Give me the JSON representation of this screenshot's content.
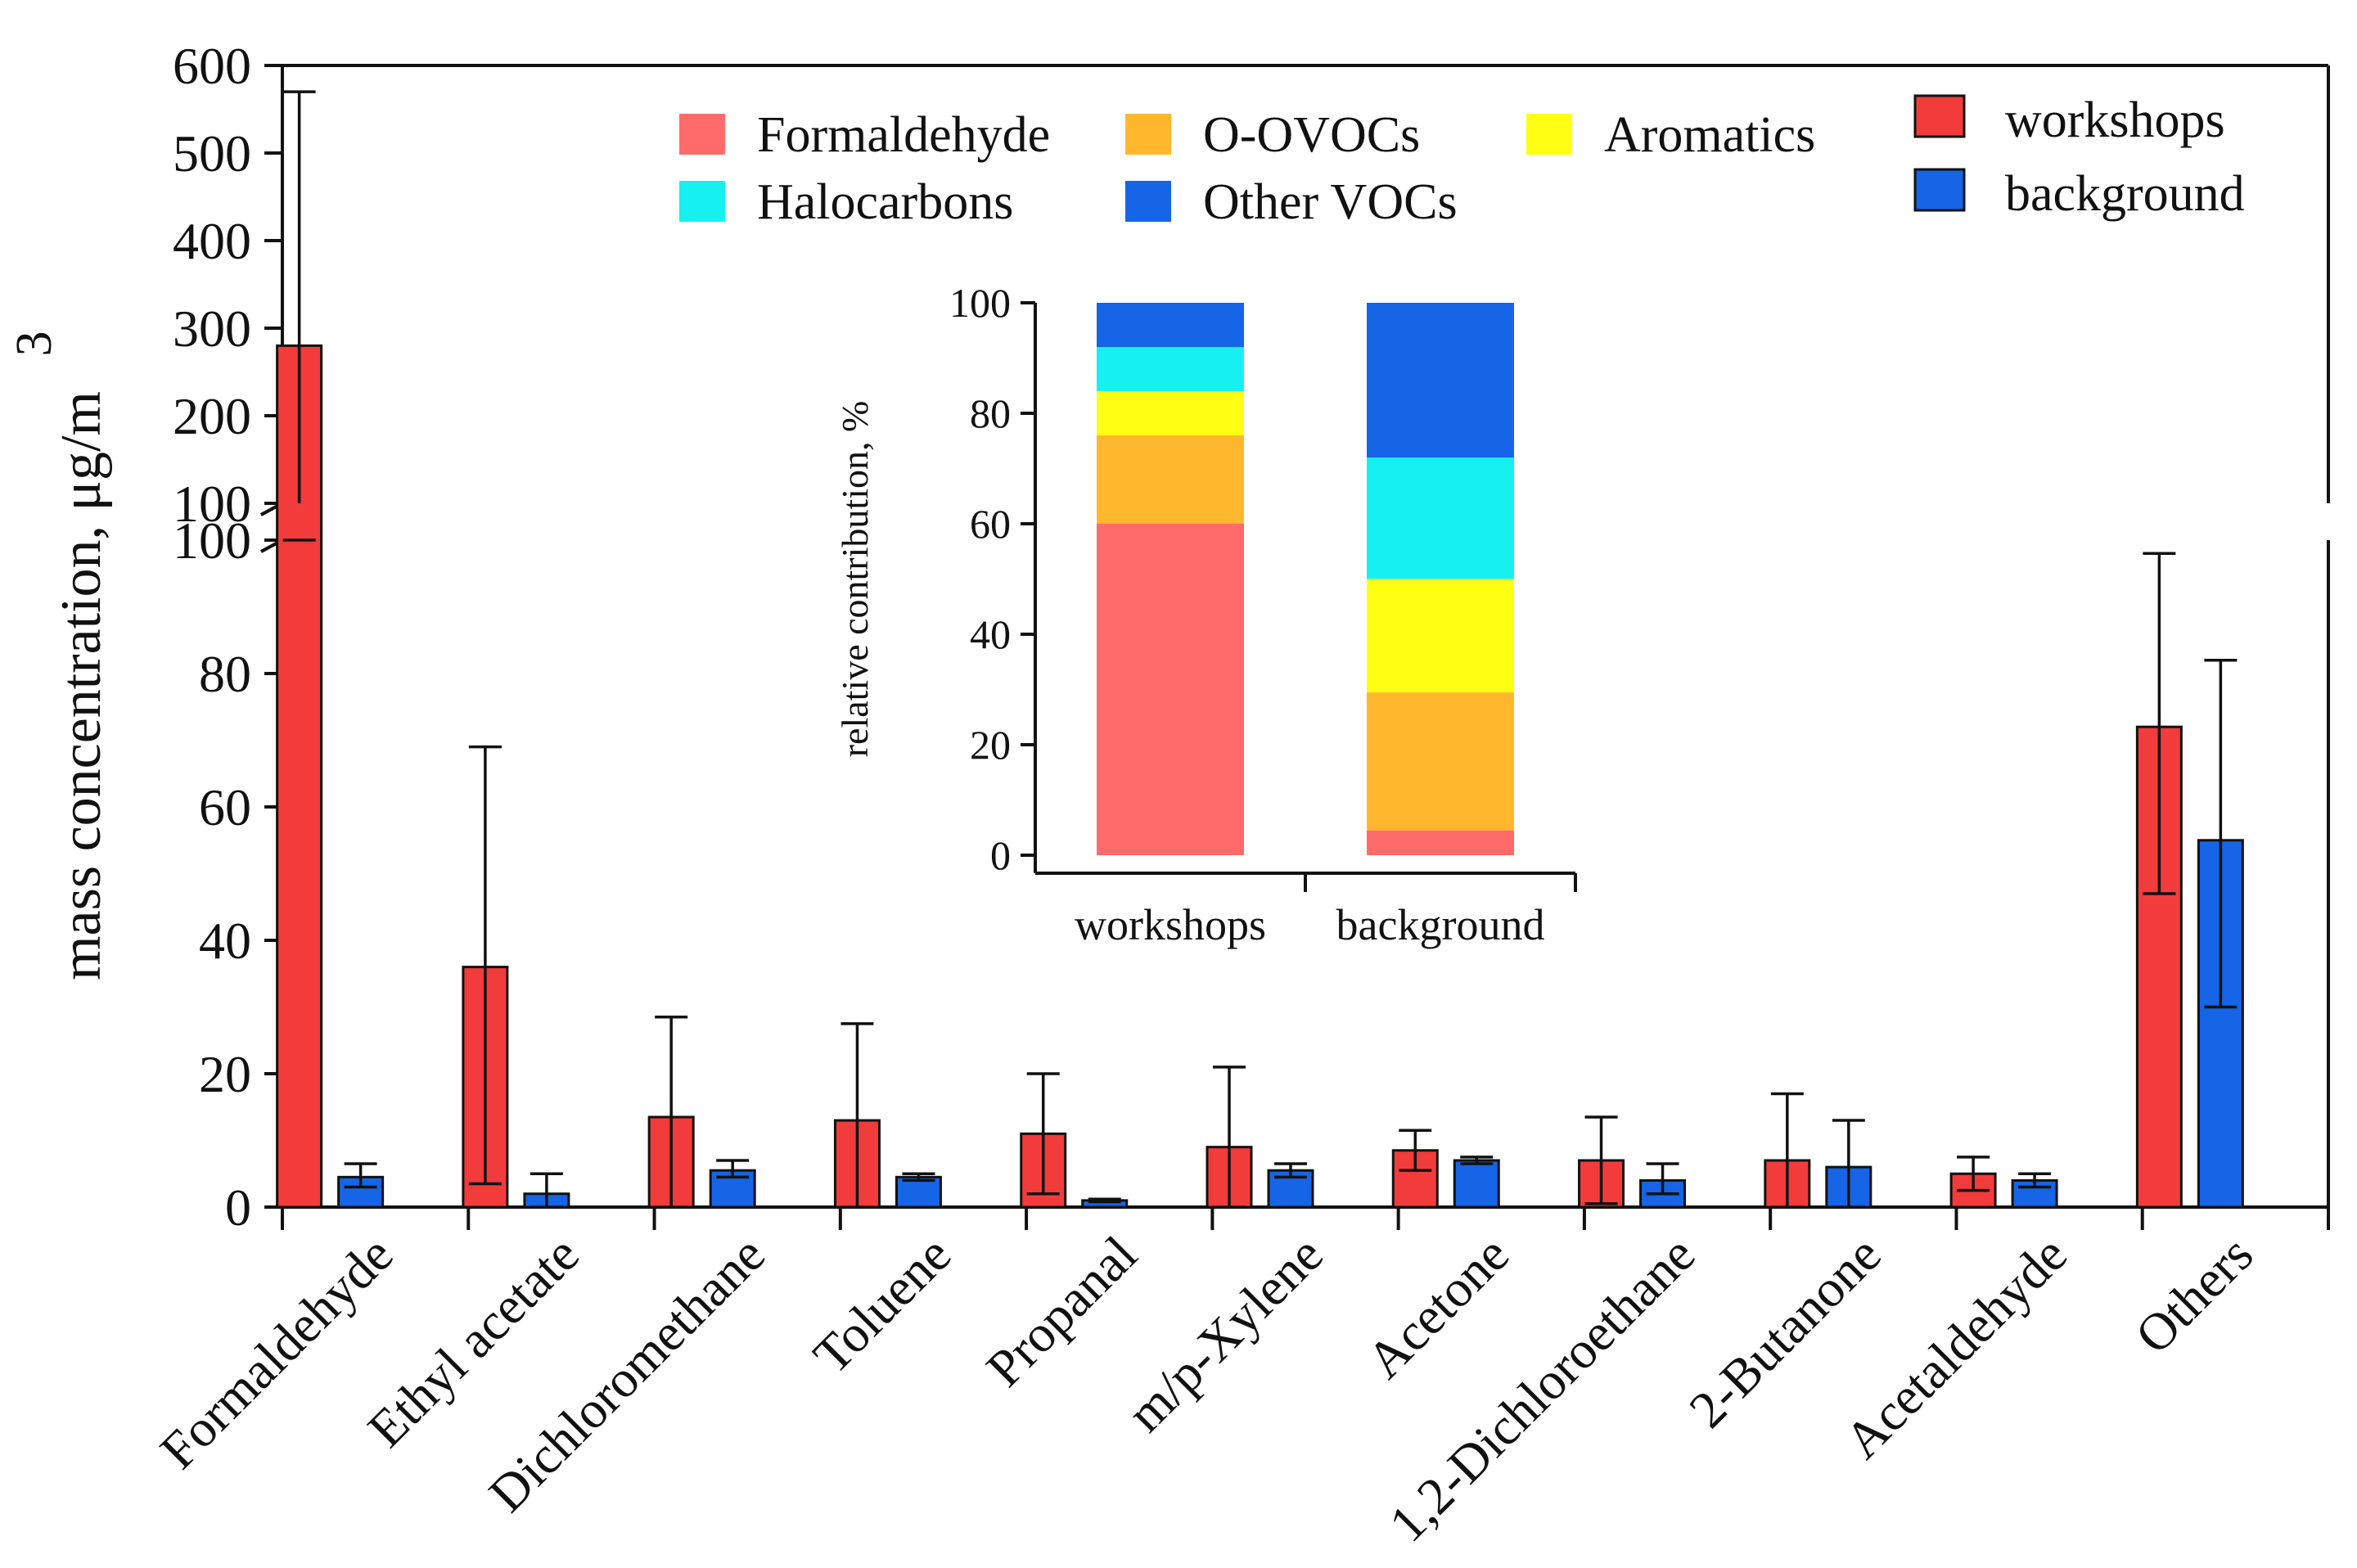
{
  "chart_data": {
    "type": "bar",
    "ylabel": "mass concentration, μg/m",
    "ylabel_superscript": "3",
    "y_break": {
      "lower_range": [
        0,
        100
      ],
      "upper_range": [
        100,
        600
      ]
    },
    "lower_ticks": [
      "0",
      "20",
      "40",
      "60",
      "80",
      "100"
    ],
    "upper_ticks": [
      "100",
      "200",
      "300",
      "400",
      "500",
      "600"
    ],
    "categories": [
      "Formaldehyde",
      "Ethyl acetate",
      "Dichloromethane",
      "Toluene",
      "Propanal",
      "m/p-Xylene",
      "Acetone",
      "1,2-Dichloroethane",
      "2-Butanone",
      "Acetaldehyde",
      "Others"
    ],
    "series": [
      {
        "name": "workshops",
        "color": "#f23b3b",
        "values": [
          280,
          36,
          13.5,
          13,
          11,
          9,
          8.5,
          7,
          7,
          5,
          72
        ],
        "error_high": [
          570,
          69,
          28.5,
          27.5,
          20,
          21,
          11.5,
          13.5,
          17,
          7.5,
          98
        ],
        "error_low": [
          100,
          3.5,
          0,
          0,
          2,
          0,
          5.5,
          0.5,
          0,
          2.5,
          47
        ]
      },
      {
        "name": "background",
        "color": "#1565e6",
        "values": [
          4.5,
          2,
          5.5,
          4.5,
          1,
          5.5,
          7,
          4,
          6,
          4,
          55
        ],
        "error_high": [
          6.5,
          5,
          7,
          5,
          1.2,
          6.5,
          7.5,
          6.5,
          13,
          5,
          82
        ],
        "error_low": [
          3,
          0,
          4.5,
          4,
          0.8,
          4.5,
          6.5,
          2,
          0,
          3,
          30
        ]
      }
    ],
    "inset": {
      "type": "stacked-bar",
      "ylabel": "relative contribution, %",
      "ylim": [
        0,
        100
      ],
      "ticks": [
        "0",
        "20",
        "40",
        "60",
        "80",
        "100"
      ],
      "categories": [
        "workshops",
        "background"
      ],
      "components": [
        {
          "name": "Formaldehyde",
          "color": "#ff6b6b",
          "values": [
            60,
            4.5
          ]
        },
        {
          "name": "O-OVOCs",
          "color": "#ffb82e",
          "values": [
            16,
            25
          ]
        },
        {
          "name": "Aromatics",
          "color": "#ffff14",
          "values": [
            8,
            20.5
          ]
        },
        {
          "name": "Halocarbons",
          "color": "#16f0f0",
          "values": [
            8,
            22
          ]
        },
        {
          "name": "Other VOCs",
          "color": "#1565e6",
          "values": [
            8,
            28
          ]
        }
      ]
    }
  }
}
